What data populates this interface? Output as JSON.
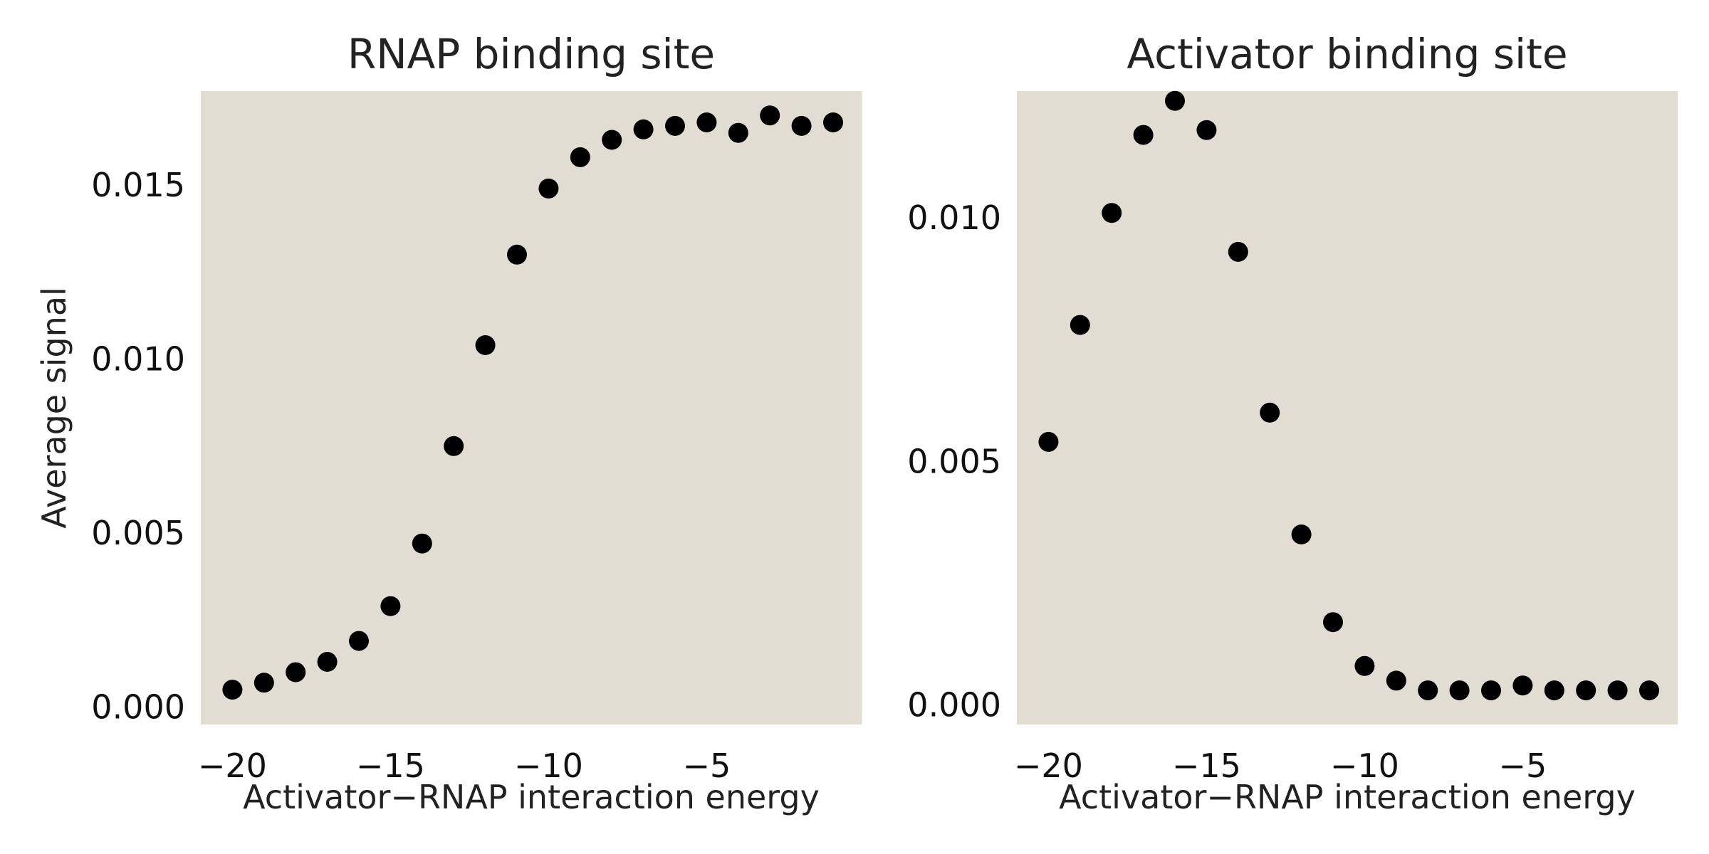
{
  "chart_data": [
    {
      "type": "scatter",
      "title": "RNAP binding site",
      "xlabel": "Activator−RNAP interaction energy",
      "ylabel": "Average signal",
      "xlim": [
        -21,
        -0.1
      ],
      "ylim": [
        -0.0005,
        0.0177
      ],
      "xticks": [
        -20,
        -15,
        -10,
        -5
      ],
      "xtick_labels": [
        "−20",
        "−15",
        "−10",
        "−5"
      ],
      "yticks": [
        0.0,
        0.005,
        0.01,
        0.015
      ],
      "ytick_labels": [
        "0.000",
        "0.005",
        "0.010",
        "0.015"
      ],
      "grid": false,
      "background": "#e2ddd2",
      "marker_color": "#000000",
      "series": [
        {
          "x": [
            -20,
            -19,
            -18,
            -17,
            -16,
            -15,
            -14,
            -13,
            -12,
            -11,
            -10,
            -9,
            -8,
            -7,
            -6,
            -5,
            -4,
            -3,
            -2,
            -1
          ],
          "y": [
            0.0005,
            0.0007,
            0.001,
            0.0013,
            0.0019,
            0.0029,
            0.0047,
            0.0075,
            0.0104,
            0.013,
            0.0149,
            0.0158,
            0.0163,
            0.0166,
            0.0167,
            0.0168,
            0.0165,
            0.017,
            0.0167,
            0.0168
          ]
        }
      ]
    },
    {
      "type": "scatter",
      "title": "Activator binding site",
      "xlabel": "Activator−RNAP interaction energy",
      "ylabel": "",
      "xlim": [
        -21,
        -0.1
      ],
      "ylim": [
        -0.0004,
        0.0126
      ],
      "xticks": [
        -20,
        -15,
        -10,
        -5
      ],
      "xtick_labels": [
        "−20",
        "−15",
        "−10",
        "−5"
      ],
      "yticks": [
        0.0,
        0.005,
        0.01
      ],
      "ytick_labels": [
        "0.000",
        "0.005",
        "0.010"
      ],
      "grid": false,
      "background": "#e2ddd2",
      "marker_color": "#000000",
      "series": [
        {
          "x": [
            -20,
            -19,
            -18,
            -17,
            -16,
            -15,
            -14,
            -13,
            -12,
            -11,
            -10,
            -9,
            -8,
            -7,
            -6,
            -5,
            -4,
            -3,
            -2,
            -1
          ],
          "y": [
            0.0054,
            0.0078,
            0.0101,
            0.0117,
            0.0124,
            0.0118,
            0.0093,
            0.006,
            0.0035,
            0.0017,
            0.0008,
            0.0005,
            0.0003,
            0.0003,
            0.0003,
            0.0004,
            0.0003,
            0.0003,
            0.0003,
            0.0003
          ]
        }
      ]
    }
  ]
}
